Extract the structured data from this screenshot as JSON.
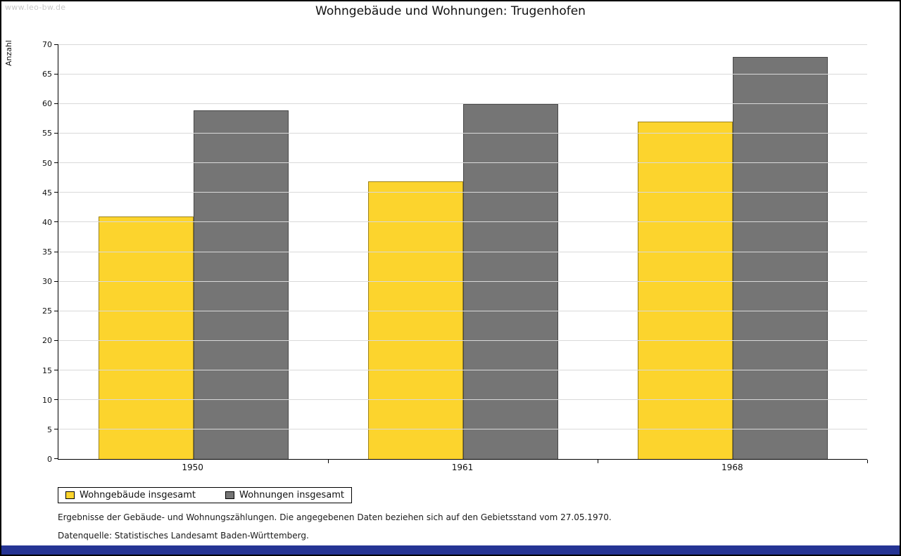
{
  "watermark": "www.leo-bw.de",
  "title": "Wohngebäude und Wohnungen: Trugenhofen",
  "chart_data": {
    "type": "bar",
    "title": "Wohngebäude und Wohnungen: Trugenhofen",
    "categories": [
      "1950",
      "1961",
      "1968"
    ],
    "series": [
      {
        "name": "Wohngebäude insgesamt",
        "color": "#fcd42d",
        "values": [
          41,
          47,
          57
        ]
      },
      {
        "name": "Wohnungen insgesamt",
        "color": "#757575",
        "values": [
          59,
          60,
          68
        ]
      }
    ],
    "xlabel": "",
    "ylabel": "Anzahl",
    "ylim": [
      0,
      70
    ],
    "ytick_step": 5,
    "grid": true,
    "legend_position": "bottom-left"
  },
  "notes": [
    "Ergebnisse der Gebäude- und Wohnungszählungen. Die angegebenen Daten beziehen sich auf den Gebietsstand vom 27.05.1970.",
    "Datenquelle: Statistisches Landesamt Baden-Württemberg."
  ],
  "colors": {
    "grid": "#d9d9d9",
    "axis": "#000000",
    "footer_bar": "#253494",
    "watermark": "#c9c9c9"
  }
}
